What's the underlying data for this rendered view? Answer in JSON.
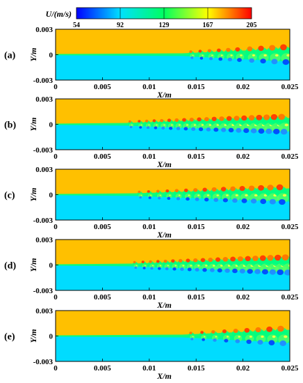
{
  "chart_data": [
    {
      "type": "heatmap",
      "panel_label": "(a)",
      "xlabel": "X/m",
      "ylabel": "Y/m",
      "xlim": [
        0,
        0.025
      ],
      "ylim": [
        -0.003,
        0.003
      ],
      "xticks": [
        "0",
        "0.005",
        "0.01",
        "0.015",
        "0.02",
        "0.025"
      ],
      "yticks": [
        "0.003",
        "0",
        "-0.003"
      ],
      "transition_start_x": 0.0135,
      "vortex_centers_x": [
        0.0145,
        0.0155,
        0.0165,
        0.0175,
        0.0185,
        0.0195,
        0.0208,
        0.022,
        0.0232,
        0.0244
      ]
    },
    {
      "type": "heatmap",
      "panel_label": "(b)",
      "xlabel": "X/m",
      "ylabel": "Y/m",
      "xlim": [
        0,
        0.025
      ],
      "ylim": [
        -0.003,
        0.003
      ],
      "xticks": [
        "0",
        "0.005",
        "0.01",
        "0.015",
        "0.02",
        "0.025"
      ],
      "yticks": [
        "0.003",
        "0",
        "-0.003"
      ],
      "transition_start_x": 0.0075,
      "vortex_centers_x": [
        0.008,
        0.009,
        0.0098,
        0.0106,
        0.0114,
        0.0122,
        0.013,
        0.0138,
        0.0146,
        0.0154,
        0.0162,
        0.017,
        0.0178,
        0.0186,
        0.0194,
        0.0202,
        0.021,
        0.0218,
        0.0226,
        0.0234,
        0.0242
      ]
    },
    {
      "type": "heatmap",
      "panel_label": "(c)",
      "xlabel": "X/m",
      "ylabel": "Y/m",
      "xlim": [
        0,
        0.025
      ],
      "ylim": [
        -0.003,
        0.003
      ],
      "xticks": [
        "0",
        "0.005",
        "0.01",
        "0.015",
        "0.02",
        "0.025"
      ],
      "yticks": [
        "0.003",
        "0",
        "-0.003"
      ],
      "transition_start_x": 0.0085,
      "vortex_centers_x": [
        0.009,
        0.01,
        0.011,
        0.012,
        0.013,
        0.014,
        0.015,
        0.016,
        0.017,
        0.018,
        0.019,
        0.02,
        0.021,
        0.022,
        0.023,
        0.024
      ]
    },
    {
      "type": "heatmap",
      "panel_label": "(d)",
      "xlabel": "X/m",
      "ylabel": "Y/m",
      "xlim": [
        0,
        0.025
      ],
      "ylim": [
        -0.003,
        0.003
      ],
      "xticks": [
        "0",
        "0.005",
        "0.01",
        "0.015",
        "0.02",
        "0.025"
      ],
      "yticks": [
        "0.003",
        "0",
        "-0.003"
      ],
      "transition_start_x": 0.008,
      "vortex_centers_x": [
        0.0085,
        0.0094,
        0.0102,
        0.011,
        0.0118,
        0.0126,
        0.0134,
        0.0142,
        0.015,
        0.0158,
        0.0166,
        0.0174,
        0.0182,
        0.019,
        0.0198,
        0.0206,
        0.0214,
        0.0222,
        0.023,
        0.0238,
        0.0246
      ]
    },
    {
      "type": "heatmap",
      "panel_label": "(e)",
      "xlabel": "X/m",
      "ylabel": "Y/m",
      "xlim": [
        0,
        0.025
      ],
      "ylim": [
        -0.003,
        0.003
      ],
      "xticks": [
        "0",
        "0.005",
        "0.01",
        "0.015",
        "0.02",
        "0.025"
      ],
      "yticks": [
        "0.003",
        "0",
        "-0.003"
      ],
      "transition_start_x": 0.0135,
      "vortex_centers_x": [
        0.0145,
        0.0157,
        0.0169,
        0.0181,
        0.0193,
        0.0205,
        0.0217,
        0.0229,
        0.0241
      ]
    }
  ],
  "colorbar": {
    "title": "U/(m/s)",
    "ticks": [
      "54",
      "92",
      "129",
      "167",
      "205"
    ],
    "min": 54,
    "max": 205,
    "colors": [
      "#0000ff",
      "#00e0ff",
      "#00ff60",
      "#ffff00",
      "#ff0000"
    ]
  },
  "field_colors": {
    "upper_stream": "#ffc000",
    "lower_stream": "#00dcff",
    "shear_line": "#00ff80",
    "high_spot": "#ff4000",
    "low_spot": "#0050ff"
  }
}
